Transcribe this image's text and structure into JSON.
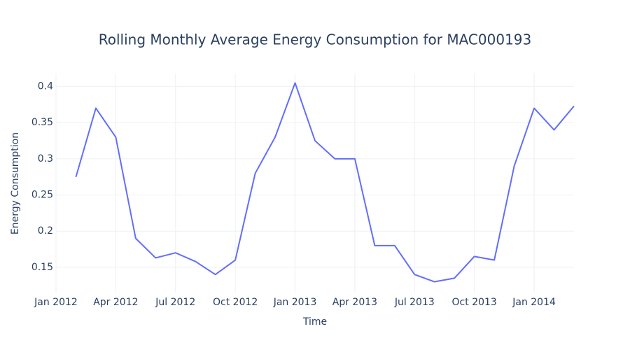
{
  "chart_data": {
    "type": "line",
    "title": "Rolling Monthly Average Energy Consumption for MAC000193",
    "x_label": "Time",
    "y_label": "Energy Consumption",
    "x": [
      "2012-02",
      "2012-03",
      "2012-04",
      "2012-05",
      "2012-06",
      "2012-07",
      "2012-08",
      "2012-09",
      "2012-10",
      "2012-11",
      "2012-12",
      "2013-01",
      "2013-02",
      "2013-03",
      "2013-04",
      "2013-05",
      "2013-06",
      "2013-07",
      "2013-08",
      "2013-09",
      "2013-10",
      "2013-11",
      "2013-12",
      "2014-01",
      "2014-02",
      "2014-03"
    ],
    "series": [
      {
        "name": "Energy Consumption",
        "color": "#636efa",
        "values": [
          0.275,
          0.37,
          0.33,
          0.19,
          0.163,
          0.17,
          0.158,
          0.14,
          0.16,
          0.28,
          0.33,
          0.405,
          0.325,
          0.3,
          0.3,
          0.18,
          0.18,
          0.14,
          0.13,
          0.135,
          0.165,
          0.16,
          0.29,
          0.37,
          0.34,
          0.373
        ]
      }
    ],
    "xlim": [
      "2012-01",
      "2014-03"
    ],
    "xticks": [
      {
        "value": "2012-01",
        "label": "Jan 2012"
      },
      {
        "value": "2012-04",
        "label": "Apr 2012"
      },
      {
        "value": "2012-07",
        "label": "Jul 2012"
      },
      {
        "value": "2012-10",
        "label": "Oct 2012"
      },
      {
        "value": "2013-01",
        "label": "Jan 2013"
      },
      {
        "value": "2013-04",
        "label": "Apr 2013"
      },
      {
        "value": "2013-07",
        "label": "Jul 2013"
      },
      {
        "value": "2013-10",
        "label": "Oct 2013"
      },
      {
        "value": "2014-01",
        "label": "Jan 2014"
      }
    ],
    "ylim": [
      0.115,
      0.418
    ],
    "yticks": [
      0.15,
      0.2,
      0.25,
      0.3,
      0.35,
      0.4
    ],
    "grid": true
  }
}
